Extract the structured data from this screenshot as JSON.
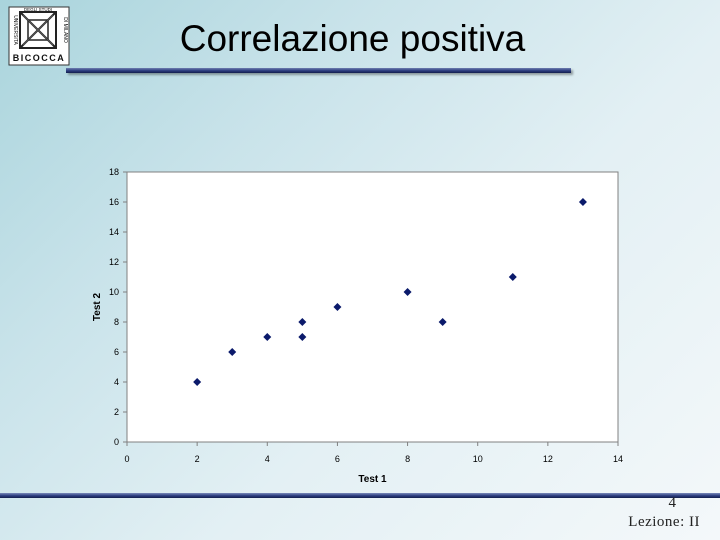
{
  "slide": {
    "title": "Correlazione positiva",
    "page_number": "4",
    "lesson": "Lezione: II",
    "logo": {
      "lines": [
        "UNIVERSITA",
        "DEGLI STUDI",
        "DI MILANO",
        "BICOCCA"
      ],
      "icon": "university-bicocca-logo"
    }
  },
  "colors": {
    "background_start": "#a9d4dc",
    "title_rule": "#2b3c7e",
    "marker": "#0b1a6b"
  },
  "chart_data": {
    "type": "scatter",
    "xlabel": "Test 1",
    "ylabel": "Test 2",
    "xlim": [
      0,
      14
    ],
    "ylim": [
      0,
      18
    ],
    "xticks": [
      0,
      2,
      4,
      6,
      8,
      10,
      12,
      14
    ],
    "yticks": [
      0,
      2,
      4,
      6,
      8,
      10,
      12,
      14,
      16,
      18
    ],
    "grid": false,
    "marker": "diamond",
    "points": [
      {
        "x": 2,
        "y": 4
      },
      {
        "x": 3,
        "y": 6
      },
      {
        "x": 4,
        "y": 7
      },
      {
        "x": 5,
        "y": 7
      },
      {
        "x": 5,
        "y": 8
      },
      {
        "x": 6,
        "y": 9
      },
      {
        "x": 8,
        "y": 10
      },
      {
        "x": 9,
        "y": 8
      },
      {
        "x": 11,
        "y": 11
      },
      {
        "x": 13,
        "y": 16
      }
    ]
  }
}
